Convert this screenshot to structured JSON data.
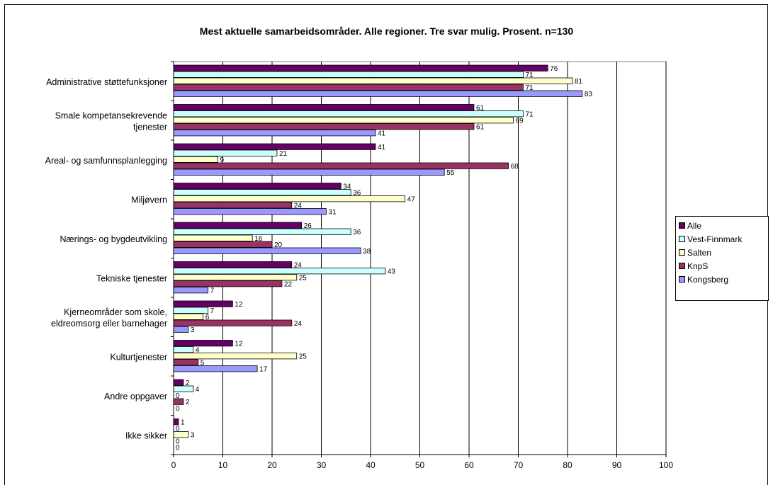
{
  "chart_data": {
    "type": "bar",
    "orientation": "horizontal",
    "title": "Mest aktuelle samarbeidsområder. Alle regioner. Tre svar mulig. Prosent. n=130",
    "xlim": [
      0,
      100
    ],
    "x_ticks": [
      "0",
      "10",
      "20",
      "30",
      "40",
      "50",
      "60",
      "70",
      "80",
      "90",
      "100"
    ],
    "grid": "vertical",
    "legend_position": "right",
    "categories": [
      [
        "Administrative støttefunksjoner"
      ],
      [
        "Smale kompetansekrevende",
        "tjenester"
      ],
      [
        "Areal- og samfunnsplanlegging"
      ],
      [
        "Miljøvern"
      ],
      [
        "Nærings- og bygdeutvikling"
      ],
      [
        "Tekniske tjenester"
      ],
      [
        "Kjerneområder som skole,",
        "eldreomsorg eller barnehager"
      ],
      [
        "Kulturtjenester"
      ],
      [
        "Andre oppgaver"
      ],
      [
        "Ikke sikker"
      ]
    ],
    "series": [
      {
        "name": "Alle",
        "color": "#660066",
        "values": [
          76,
          61,
          41,
          34,
          26,
          24,
          12,
          12,
          2,
          1
        ]
      },
      {
        "name": "Vest-Finnmark",
        "color": "#ccffff",
        "values": [
          71,
          71,
          21,
          36,
          36,
          43,
          7,
          4,
          4,
          0
        ]
      },
      {
        "name": "Salten",
        "color": "#ffffcc",
        "values": [
          81,
          69,
          9,
          47,
          16,
          25,
          6,
          25,
          0,
          3
        ]
      },
      {
        "name": "KnpS",
        "color": "#993366",
        "values": [
          71,
          61,
          68,
          24,
          20,
          22,
          24,
          5,
          2,
          0
        ]
      },
      {
        "name": "Kongsberg",
        "color": "#9999ff",
        "values": [
          83,
          41,
          55,
          31,
          38,
          7,
          3,
          17,
          0,
          0
        ]
      }
    ]
  }
}
